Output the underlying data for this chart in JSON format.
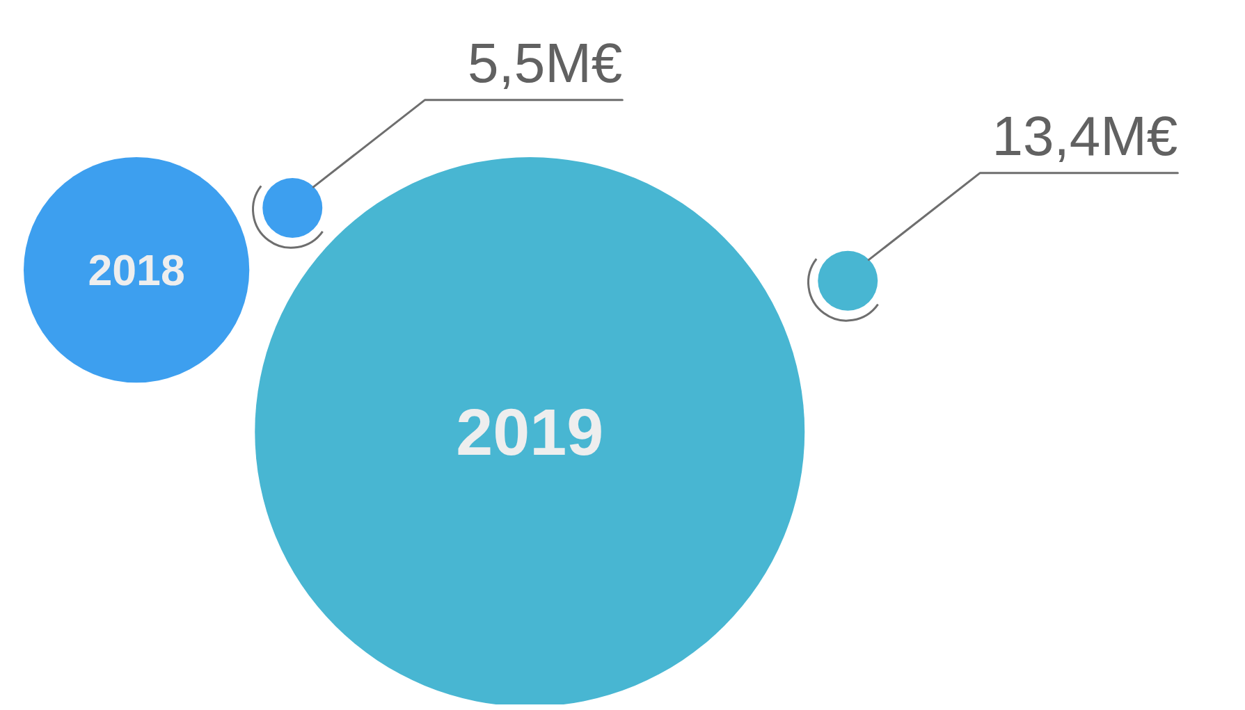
{
  "chart_data": {
    "type": "other",
    "categories": [
      "2018",
      "2019"
    ],
    "values": [
      5.5,
      13.4
    ],
    "value_labels": [
      "5,5M€",
      "13,4M€"
    ],
    "colors": [
      "#3d9fef",
      "#48b6d2"
    ]
  }
}
